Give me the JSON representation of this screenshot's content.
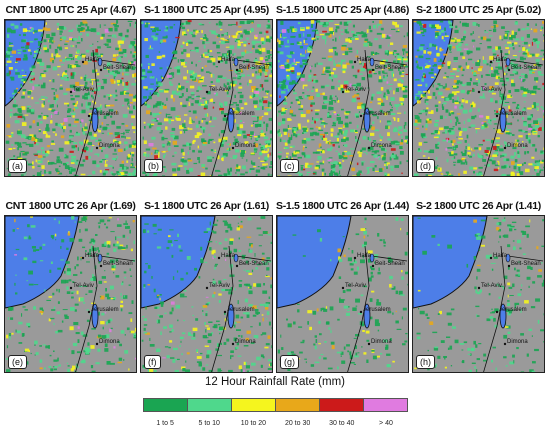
{
  "panels": [
    {
      "title": "CNT 1800 UTC 25 Apr (4.67)",
      "label": "(a)",
      "intensity": "high",
      "regime": "east"
    },
    {
      "title": "S-1 1800 UTC 25 Apr (4.95)",
      "label": "(b)",
      "intensity": "high",
      "regime": "east"
    },
    {
      "title": "S-1.5 1800 UTC 25 Apr (4.86)",
      "label": "(c)",
      "intensity": "high",
      "regime": "east"
    },
    {
      "title": "S-2 1800 UTC 25 Apr (5.02)",
      "label": "(d)",
      "intensity": "high",
      "regime": "east"
    },
    {
      "title": "CNT 1800 UTC 26 Apr (1.69)",
      "label": "(e)",
      "intensity": "medium",
      "regime": "sea"
    },
    {
      "title": "S-1 1800 UTC 26 Apr (1.61)",
      "label": "(f)",
      "intensity": "medium",
      "regime": "sea"
    },
    {
      "title": "S-1.5 1800 UTC 26 Apr (1.44)",
      "label": "(g)",
      "intensity": "low",
      "regime": "sea"
    },
    {
      "title": "S-2 1800 UTC 26 Apr (1.41)",
      "label": "(h)",
      "intensity": "low",
      "regime": "sea"
    }
  ],
  "cities": [
    "Haifa",
    "Tel-Aviv",
    "Beit-Shean",
    "Jerusalem",
    "Dimona"
  ],
  "legend": {
    "title": "12 Hour Rainfall Rate (mm)",
    "bins": [
      {
        "label": "1 to 5",
        "color": "#1aa552"
      },
      {
        "label": "5 to 10",
        "color": "#4fd88c"
      },
      {
        "label": "10 to 20",
        "color": "#f5f51e"
      },
      {
        "label": "20 to 30",
        "color": "#e8a81a"
      },
      {
        "label": "30 to 40",
        "color": "#cc1a1a"
      },
      {
        "label": "> 40",
        "color": "#e07be0"
      }
    ]
  },
  "colors": {
    "sea": "#4d7ee8",
    "land": "#9a9a9a",
    "lake": "#4d7ee8"
  }
}
